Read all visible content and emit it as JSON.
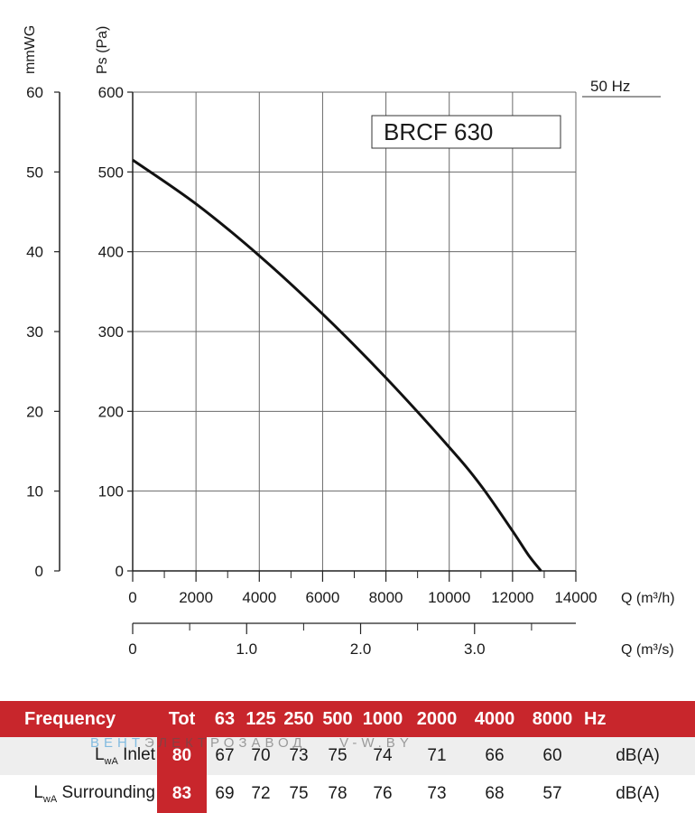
{
  "chart_data": {
    "type": "line",
    "title": "BRCF 630",
    "frequency_label": "50 Hz",
    "x_label_primary": "Q (m³/h)",
    "x_label_secondary": "Q (m³/s)",
    "y_label_left": "mmWG",
    "y_label_right": "Ps (Pa)",
    "xlim": [
      0,
      14000
    ],
    "ylim": [
      0,
      600
    ],
    "ylim_mmwg": [
      0,
      60
    ],
    "x_ticks": [
      0,
      2000,
      4000,
      6000,
      8000,
      10000,
      12000,
      14000
    ],
    "x_ticks_secondary": [
      "0",
      "1.0",
      "2.0",
      "3.0"
    ],
    "x_ticks_secondary_values": [
      0,
      1.0,
      2.0,
      3.0
    ],
    "y_ticks_pa": [
      0,
      100,
      200,
      300,
      400,
      500,
      600
    ],
    "y_ticks_mmwg": [
      0,
      10,
      20,
      30,
      40,
      50,
      60
    ],
    "grid": true,
    "series": [
      {
        "x": [
          0,
          2000,
          4000,
          6000,
          8000,
          10000,
          11000,
          12000,
          12500,
          12900
        ],
        "y": [
          515,
          460,
          395,
          322,
          242,
          155,
          107,
          50,
          20,
          0
        ],
        "color": "#111111"
      }
    ]
  },
  "table": {
    "header": {
      "frequency": "Frequency",
      "tot": "Tot",
      "bands": [
        "63",
        "125",
        "250",
        "500",
        "1000",
        "2000",
        "4000",
        "8000"
      ],
      "unit": "Hz"
    },
    "rows": [
      {
        "label_main": "L",
        "label_sub": "wA",
        "label_rest": " Inlet",
        "tot": "80",
        "values": [
          "67",
          "70",
          "73",
          "75",
          "74",
          "71",
          "66",
          "60"
        ],
        "unit": "dB(A)"
      },
      {
        "label_main": "L",
        "label_sub": "wA",
        "label_rest": " Surrounding",
        "tot": "83",
        "values": [
          "69",
          "72",
          "75",
          "78",
          "76",
          "73",
          "68",
          "57"
        ],
        "unit": "dB(A)"
      }
    ]
  },
  "watermark": {
    "part1": "ВЕНТ",
    "part2": "ЭЛЕКТРО",
    "part3": "ЗАВОД",
    "part4": "V-W.BY"
  },
  "colors": {
    "accent": "#c8262c",
    "row_alt": "#eeeeee",
    "grid": "#555555"
  }
}
